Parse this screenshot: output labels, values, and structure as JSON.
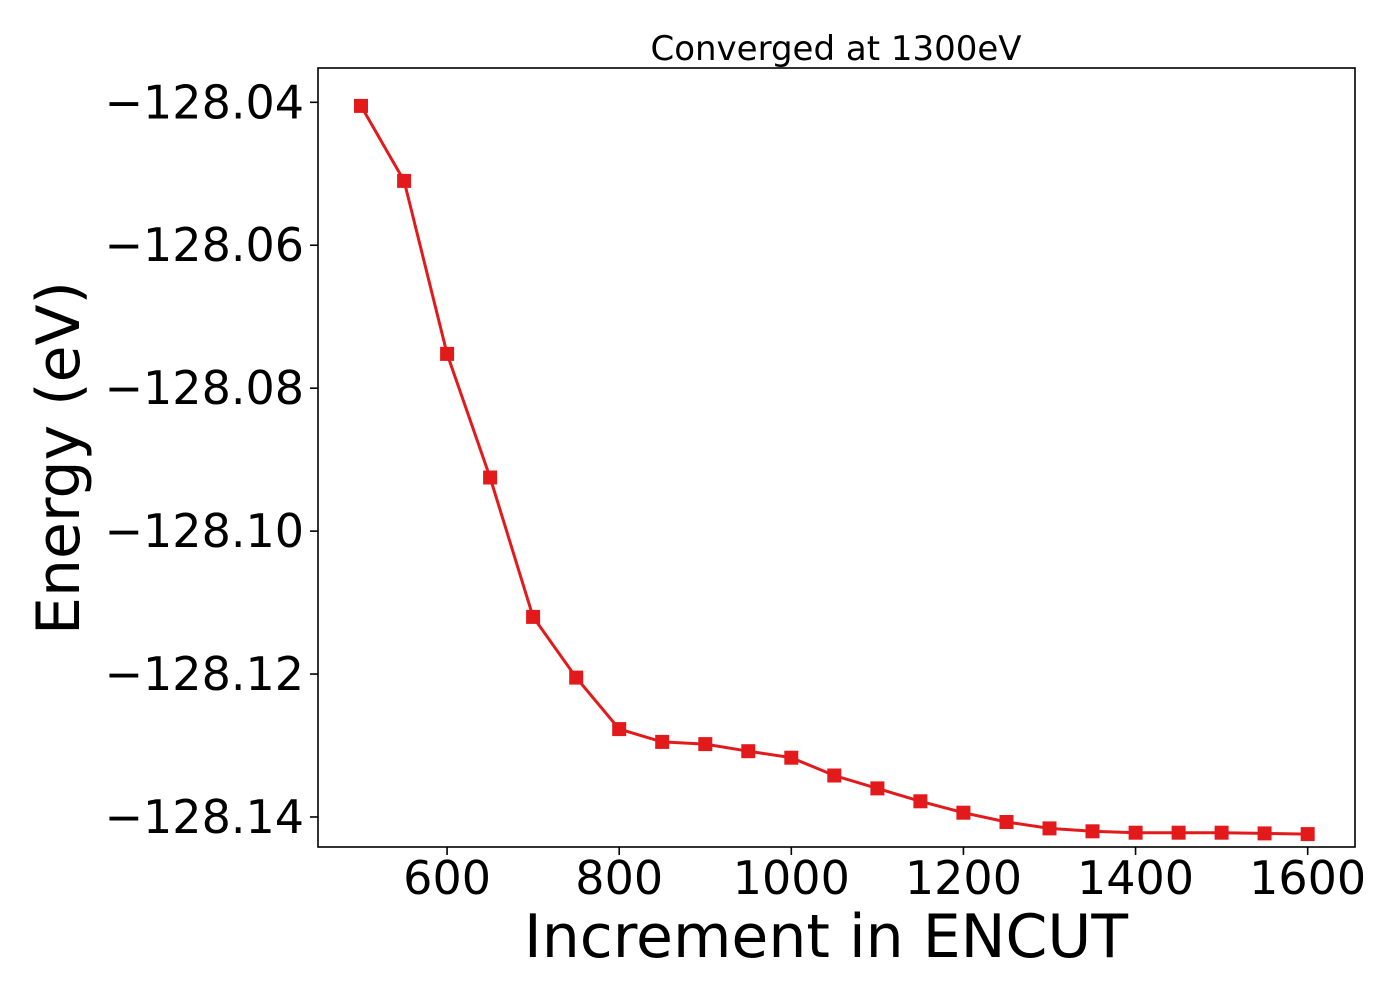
{
  "chart_data": {
    "type": "line",
    "title": "Converged at 1300eV",
    "xlabel": "Increment in ENCUT",
    "ylabel": "Energy (eV)",
    "xlim": [
      450,
      1655
    ],
    "ylim": [
      -128.1442,
      -128.0352
    ],
    "x_ticks": [
      600,
      800,
      1000,
      1200,
      1400,
      1600
    ],
    "x_tick_labels": [
      "600",
      "800",
      "1000",
      "1200",
      "1400",
      "1600"
    ],
    "y_ticks": [
      -128.04,
      -128.06,
      -128.08,
      -128.1,
      -128.12,
      -128.14
    ],
    "y_tick_labels": [
      "−128.04",
      "−128.06",
      "−128.08",
      "−128.10",
      "−128.12",
      "−128.14"
    ],
    "grid": false,
    "legend": "none",
    "series": [
      {
        "color": "#e31a1c",
        "marker": "square",
        "x": [
          500,
          550,
          600,
          650,
          700,
          750,
          800,
          850,
          900,
          950,
          1000,
          1050,
          1100,
          1150,
          1200,
          1250,
          1300,
          1350,
          1400,
          1450,
          1500,
          1550,
          1600
        ],
        "y": [
          -128.0405,
          -128.051,
          -128.0752,
          -128.0925,
          -128.112,
          -128.1205,
          -128.1277,
          -128.1295,
          -128.1298,
          -128.1308,
          -128.1317,
          -128.1342,
          -128.136,
          -128.1378,
          -128.1394,
          -128.1407,
          -128.1416,
          -128.142,
          -128.1422,
          -128.1422,
          -128.1422,
          -128.1423,
          -128.1424
        ]
      }
    ]
  }
}
